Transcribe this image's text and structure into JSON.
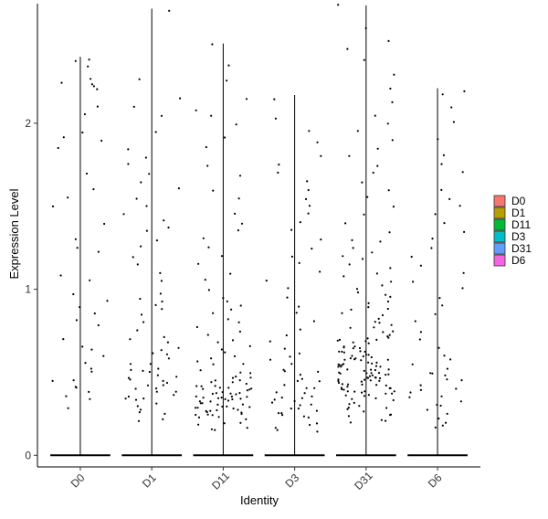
{
  "chart_data": {
    "type": "scatter",
    "subtype": "violin_jitter",
    "xlabel": "Identity",
    "ylabel": "Expression Level",
    "categories": [
      "D0",
      "D1",
      "D11",
      "D3",
      "D31",
      "D6"
    ],
    "y_ticks": [
      0,
      1,
      2
    ],
    "ylim": [
      -0.07,
      2.72
    ],
    "grid": false,
    "legend": {
      "position": "right",
      "entries": [
        {
          "label": "D0",
          "color": "#F8766D"
        },
        {
          "label": "D1",
          "color": "#B79F00"
        },
        {
          "label": "D11",
          "color": "#00BA38"
        },
        {
          "label": "D3",
          "color": "#00BFC4"
        },
        {
          "label": "D31",
          "color": "#619CFF"
        },
        {
          "label": "D6",
          "color": "#F564E3"
        }
      ]
    },
    "groups": [
      {
        "name": "D0",
        "max": 2.4,
        "zero_fraction": 0.92
      },
      {
        "name": "D1",
        "max": 2.69,
        "zero_fraction": 0.85
      },
      {
        "name": "D11",
        "max": 2.48,
        "zero_fraction": 0.7
      },
      {
        "name": "D3",
        "max": 2.17,
        "zero_fraction": 0.78
      },
      {
        "name": "D31",
        "max": 2.71,
        "zero_fraction": 0.55
      },
      {
        "name": "D6",
        "max": 2.21,
        "zero_fraction": 0.88
      }
    ],
    "points_by_group": {
      "D0": [
        2.38,
        2.35,
        2.27,
        2.25,
        2.24,
        2.22,
        2.2,
        2.05,
        1.92,
        1.9,
        1.85,
        1.6,
        1.55,
        1.4,
        1.3,
        1.22,
        1.08,
        0.97,
        0.93,
        0.85,
        0.82,
        0.78,
        0.66,
        0.63,
        0.55,
        0.52,
        0.5,
        0.45,
        0.42,
        0.4,
        0.35,
        0.33,
        0.28,
        2.37,
        2.1,
        1.95,
        1.7,
        1.5,
        1.25,
        1.05,
        0.9,
        0.7,
        0.6,
        0.45,
        0.38
      ],
      "D1": [
        2.68,
        2.27,
        2.15,
        2.1,
        2.05,
        1.95,
        1.85,
        1.75,
        1.7,
        1.65,
        1.55,
        1.5,
        1.45,
        1.42,
        1.38,
        1.3,
        1.25,
        1.15,
        1.1,
        1.05,
        0.98,
        0.92,
        0.9,
        0.88,
        0.85,
        0.8,
        0.75,
        0.7,
        0.65,
        0.62,
        0.58,
        0.55,
        0.52,
        0.5,
        0.48,
        0.46,
        0.45,
        0.44,
        0.42,
        0.4,
        0.38,
        0.36,
        0.35,
        0.33,
        0.32,
        0.3,
        0.28,
        0.26,
        0.25,
        0.22,
        0.2,
        0.6,
        0.55,
        0.5,
        0.45,
        0.4,
        0.42,
        0.38,
        0.48,
        0.52,
        0.36,
        0.34,
        1.8,
        1.6,
        1.35,
        1.2,
        0.95,
        0.72,
        0.68,
        0.64
      ],
      "D11": [
        2.48,
        2.35,
        2.25,
        2.15,
        2.08,
        2.05,
        2.0,
        1.92,
        1.85,
        1.75,
        1.68,
        1.6,
        1.55,
        1.45,
        1.4,
        1.35,
        1.3,
        1.25,
        1.2,
        1.15,
        1.1,
        1.05,
        1.0,
        0.95,
        0.92,
        0.9,
        0.88,
        0.85,
        0.82,
        0.8,
        0.78,
        0.75,
        0.72,
        0.7,
        0.68,
        0.66,
        0.64,
        0.62,
        0.6,
        0.58,
        0.56,
        0.55,
        0.54,
        0.52,
        0.5,
        0.5,
        0.48,
        0.47,
        0.46,
        0.45,
        0.44,
        0.43,
        0.42,
        0.41,
        0.4,
        0.4,
        0.39,
        0.38,
        0.38,
        0.37,
        0.36,
        0.36,
        0.35,
        0.35,
        0.34,
        0.33,
        0.33,
        0.32,
        0.32,
        0.31,
        0.3,
        0.3,
        0.29,
        0.28,
        0.28,
        0.27,
        0.26,
        0.26,
        0.25,
        0.24,
        0.24,
        0.23,
        0.22,
        0.21,
        0.2,
        0.19,
        0.18,
        0.17,
        0.16,
        0.15,
        0.42,
        0.38,
        0.35,
        0.33,
        0.3,
        0.28,
        0.45,
        0.4,
        0.37,
        0.34,
        0.31,
        0.29,
        0.27,
        0.25,
        0.36,
        0.39,
        0.41,
        0.44,
        0.32,
        0.26
      ],
      "D3": [
        2.15,
        2.02,
        1.95,
        1.88,
        1.8,
        1.75,
        1.7,
        1.65,
        1.6,
        1.55,
        1.5,
        1.45,
        1.4,
        1.35,
        1.3,
        1.25,
        1.2,
        1.15,
        1.1,
        1.05,
        1.0,
        0.95,
        0.9,
        0.85,
        0.8,
        0.75,
        0.72,
        0.68,
        0.65,
        0.62,
        0.6,
        0.58,
        0.55,
        0.52,
        0.5,
        0.48,
        0.46,
        0.44,
        0.42,
        0.4,
        0.38,
        0.36,
        0.35,
        0.34,
        0.32,
        0.3,
        0.28,
        0.27,
        0.26,
        0.25,
        0.24,
        0.22,
        0.2,
        0.18,
        0.16,
        0.15,
        0.14,
        0.4,
        0.35,
        0.3,
        0.28,
        0.25,
        0.45,
        0.5,
        0.38,
        0.33
      ],
      "D31": [
        2.71,
        2.58,
        2.5,
        2.45,
        2.38,
        2.3,
        2.2,
        2.12,
        2.05,
        2.0,
        1.95,
        1.9,
        1.85,
        1.8,
        1.75,
        1.7,
        1.65,
        1.6,
        1.55,
        1.5,
        1.45,
        1.4,
        1.35,
        1.3,
        1.28,
        1.25,
        1.22,
        1.2,
        1.18,
        1.15,
        1.12,
        1.1,
        1.08,
        1.05,
        1.02,
        1.0,
        0.98,
        0.96,
        0.95,
        0.93,
        0.92,
        0.9,
        0.88,
        0.87,
        0.85,
        0.84,
        0.82,
        0.8,
        0.8,
        0.78,
        0.77,
        0.76,
        0.75,
        0.74,
        0.73,
        0.72,
        0.71,
        0.7,
        0.7,
        0.69,
        0.68,
        0.67,
        0.66,
        0.65,
        0.65,
        0.64,
        0.63,
        0.62,
        0.62,
        0.61,
        0.6,
        0.6,
        0.59,
        0.58,
        0.58,
        0.57,
        0.56,
        0.56,
        0.55,
        0.55,
        0.54,
        0.54,
        0.53,
        0.53,
        0.52,
        0.52,
        0.51,
        0.51,
        0.5,
        0.5,
        0.49,
        0.49,
        0.48,
        0.48,
        0.47,
        0.47,
        0.46,
        0.46,
        0.45,
        0.45,
        0.44,
        0.44,
        0.43,
        0.43,
        0.42,
        0.42,
        0.41,
        0.41,
        0.4,
        0.4,
        0.39,
        0.39,
        0.38,
        0.38,
        0.37,
        0.37,
        0.36,
        0.36,
        0.35,
        0.35,
        0.34,
        0.33,
        0.32,
        0.31,
        0.3,
        0.29,
        0.28,
        0.27,
        0.26,
        0.25,
        0.24,
        0.23,
        0.22,
        0.21,
        0.2,
        0.6,
        0.55,
        0.5,
        0.45,
        0.4,
        0.65,
        0.7,
        0.58,
        0.52,
        0.48,
        0.43,
        0.38,
        0.62,
        0.57,
        0.53,
        0.47,
        0.42,
        0.68,
        0.63,
        0.59,
        0.54,
        0.49,
        0.44,
        0.39
      ],
      "D6": [
        2.2,
        2.18,
        2.1,
        2.0,
        1.9,
        1.8,
        1.75,
        1.7,
        1.6,
        1.55,
        1.5,
        1.45,
        1.4,
        1.35,
        1.3,
        1.25,
        1.2,
        1.15,
        1.1,
        1.05,
        1.0,
        0.95,
        0.9,
        0.85,
        0.8,
        0.75,
        0.7,
        0.65,
        0.6,
        0.58,
        0.55,
        0.52,
        0.5,
        0.48,
        0.45,
        0.42,
        0.4,
        0.38,
        0.35,
        0.33,
        0.3,
        0.28,
        0.25,
        0.22,
        0.2,
        0.18,
        0.16,
        0.45,
        0.4,
        0.35,
        0.5,
        0.3
      ]
    }
  }
}
